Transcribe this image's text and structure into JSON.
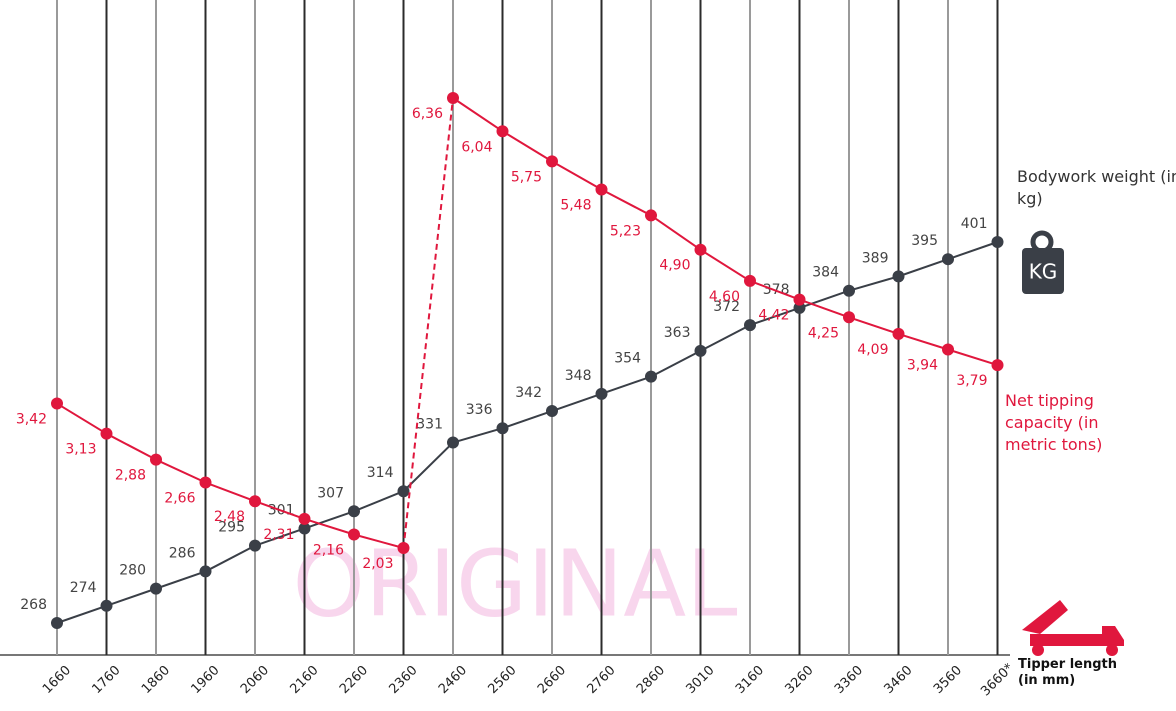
{
  "chart_data": {
    "type": "line",
    "categories": [
      "1660",
      "1760",
      "1860",
      "1960",
      "2060",
      "2160",
      "2260",
      "2360",
      "2460",
      "2560",
      "2660",
      "2760",
      "2860",
      "3010",
      "3160",
      "3260",
      "3360",
      "3460",
      "3560",
      "3660*"
    ],
    "x_label": "Tipper length (in mm)",
    "watermark": "ORIGINAL",
    "icon_text": "KG",
    "series": [
      {
        "name": "Bodywork weight (in kg)",
        "color": "#3a3f47",
        "values": [
          268,
          274,
          280,
          286,
          295,
          301,
          307,
          314,
          331,
          336,
          342,
          348,
          354,
          363,
          372,
          378,
          384,
          389,
          395,
          401
        ]
      },
      {
        "name": "Net tipping capacity (in metric tons)",
        "color": "#e0173d",
        "values": [
          3.42,
          3.13,
          2.88,
          2.66,
          2.48,
          2.31,
          2.16,
          2.03,
          6.36,
          6.04,
          5.75,
          5.48,
          5.23,
          4.9,
          4.6,
          4.42,
          4.25,
          4.09,
          3.94,
          3.79
        ],
        "value_labels": [
          "3,42",
          "3,13",
          "2,88",
          "2,66",
          "2,48",
          "2,31",
          "2,16",
          "2,03",
          "6,36",
          "6,04",
          "5,75",
          "5,48",
          "5,23",
          "4,90",
          "4,60",
          "4,42",
          "4,25",
          "4,09",
          "3,94",
          "3,79"
        ]
      }
    ]
  }
}
